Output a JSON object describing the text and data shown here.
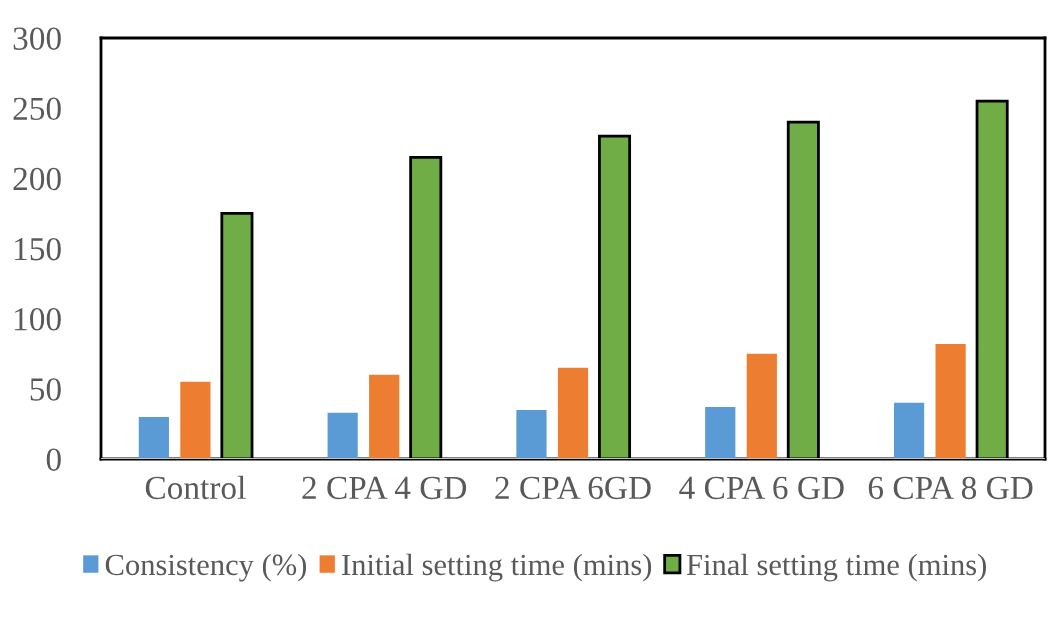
{
  "chart_data": {
    "type": "bar",
    "categories": [
      "Control",
      "2 CPA 4 GD",
      "2 CPA 6GD",
      "4 CPA 6 GD",
      "6 CPA 8 GD"
    ],
    "series": [
      {
        "name": "Consistency (%)",
        "color": "#5b9bd5",
        "values": [
          30,
          33,
          35,
          37,
          40
        ]
      },
      {
        "name": "Initial setting time (mins)",
        "color": "#ed7d31",
        "values": [
          55,
          60,
          65,
          75,
          82
        ]
      },
      {
        "name": "Final setting time (mins)",
        "color": "#70ad47",
        "values": [
          175,
          215,
          230,
          240,
          255
        ]
      }
    ],
    "ylim": [
      0,
      300
    ],
    "yticks": [
      0,
      50,
      100,
      150,
      200,
      250,
      300
    ],
    "grid": false,
    "legend": "bottom"
  }
}
